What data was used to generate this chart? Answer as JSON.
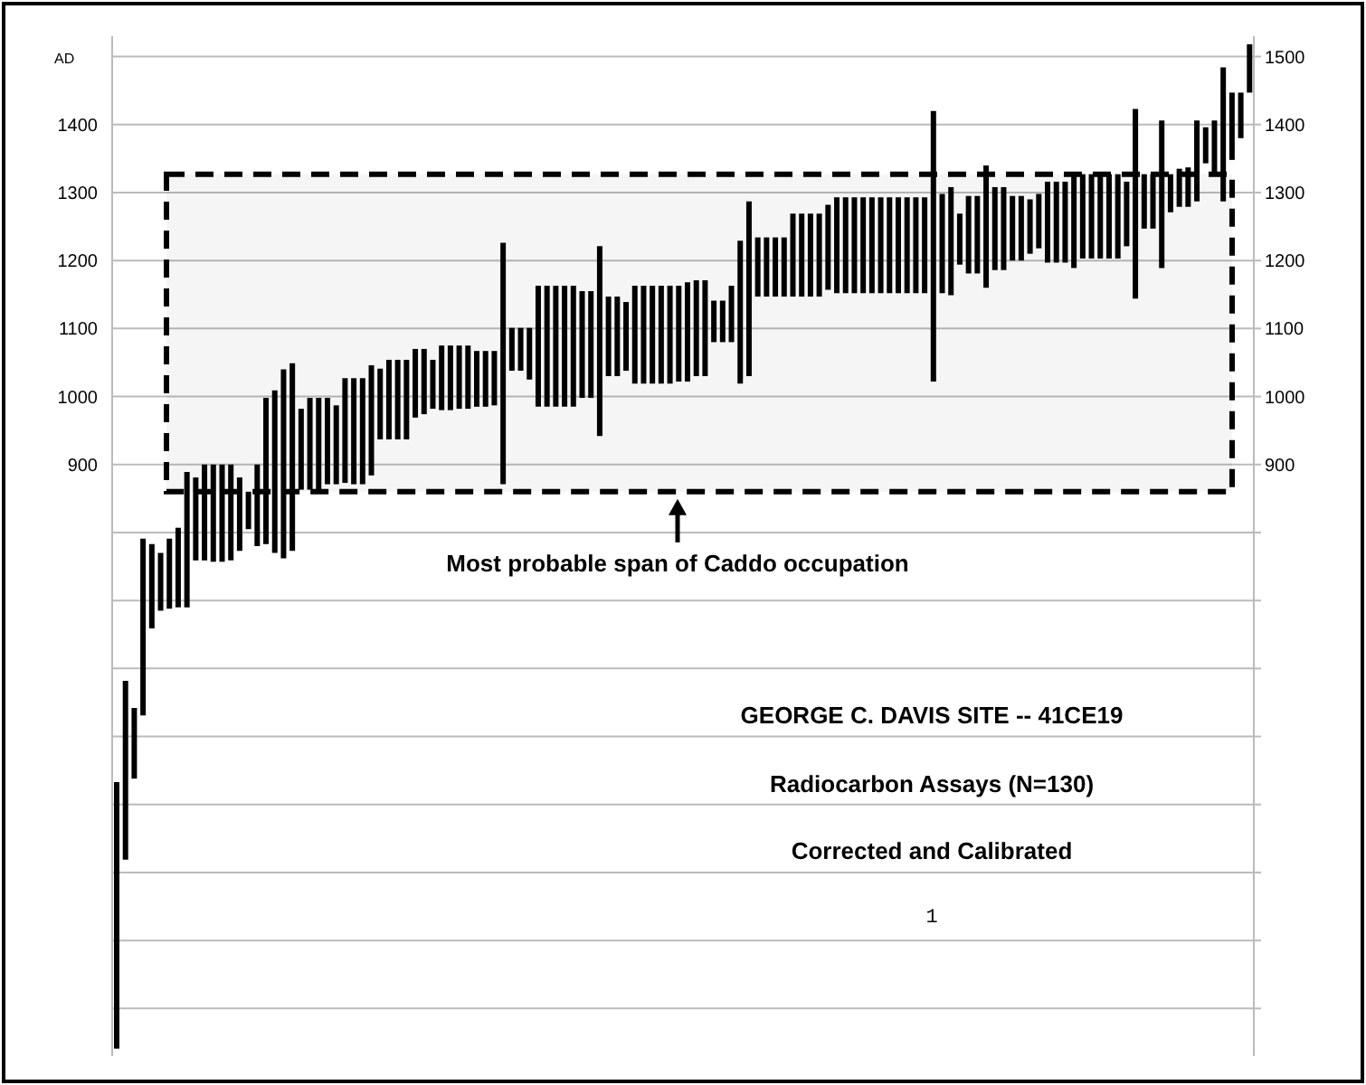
{
  "chart_data": {
    "type": "bar",
    "title": "GEORGE C. DAVIS SITE -- 41CE19",
    "subtitle": "Radiocarbon Assays (N=130)",
    "ylabel": "AD",
    "annotations": [
      "Corrected and Calibrated",
      "1"
    ],
    "categories": [
      null,
      null,
      null,
      null,
      null,
      null,
      null,
      null,
      null,
      null,
      null,
      null,
      null,
      null,
      null,
      null,
      null,
      null,
      null,
      null,
      null,
      null,
      null,
      null,
      null,
      null,
      null,
      null,
      null,
      null,
      null,
      null,
      null,
      null,
      null,
      null,
      null,
      null,
      null,
      null,
      null,
      null,
      null,
      null,
      null,
      null,
      null,
      null,
      null,
      null,
      null,
      null,
      null,
      null,
      null,
      null,
      null,
      null,
      null,
      null,
      null,
      null,
      null,
      null,
      null,
      null,
      null,
      null,
      null,
      null,
      null,
      null,
      null,
      null,
      null,
      null,
      null,
      null,
      null,
      null,
      null,
      null,
      null,
      null,
      null,
      null,
      null,
      null,
      null,
      null,
      null,
      null,
      null,
      null,
      null,
      null,
      null,
      null,
      null,
      null,
      null,
      null,
      null,
      null,
      null,
      null,
      null,
      null,
      null,
      null,
      null,
      null,
      null,
      null,
      null,
      null,
      null,
      null,
      null,
      null,
      null,
      null,
      null,
      null,
      null,
      null,
      null,
      null,
      null,
      null
    ],
    "base": [
      41,
      319,
      438,
      531,
      659,
      685,
      688,
      690,
      690,
      759,
      759,
      757,
      757,
      759,
      773,
      805,
      780,
      783,
      770,
      762,
      773,
      863,
      863,
      863,
      871,
      871,
      873,
      871,
      871,
      884,
      937,
      937,
      937,
      937,
      969,
      974,
      982,
      980,
      980,
      982,
      982,
      985,
      985,
      987,
      871,
      1038,
      1038,
      1025,
      985,
      985,
      985,
      985,
      985,
      998,
      998,
      942,
      1030,
      1030,
      1038,
      1019,
      1019,
      1019,
      1019,
      1019,
      1022,
      1022,
      1030,
      1030,
      1080,
      1080,
      1080,
      1019,
      1030,
      1147,
      1147,
      1147,
      1147,
      1147,
      1147,
      1147,
      1147,
      1157,
      1152,
      1152,
      1152,
      1152,
      1152,
      1152,
      1152,
      1152,
      1152,
      1152,
      1152,
      1022,
      1152,
      1149,
      1194,
      1181,
      1181,
      1160,
      1186,
      1186,
      1200,
      1200,
      1210,
      1218,
      1197,
      1197,
      1197,
      1189,
      1203,
      1203,
      1203,
      1203,
      1203,
      1221,
      1144,
      1247,
      1247,
      1189,
      1271,
      1279,
      1279,
      1287,
      1343,
      1330,
      1287,
      1348,
      1380,
      1447
    ],
    "values": [
      392,
      263,
      104,
      260,
      124,
      85,
      103,
      117,
      199,
      122,
      141,
      143,
      143,
      141,
      108,
      55,
      120,
      215,
      239,
      278,
      276,
      119,
      135,
      135,
      127,
      116,
      154,
      156,
      156,
      162,
      104,
      117,
      117,
      117,
      101,
      96,
      72,
      95,
      95,
      93,
      93,
      82,
      82,
      80,
      355,
      63,
      63,
      76,
      178,
      178,
      178,
      178,
      178,
      157,
      157,
      279,
      117,
      117,
      101,
      144,
      144,
      144,
      144,
      144,
      141,
      146,
      141,
      141,
      61,
      61,
      83,
      210,
      257,
      87,
      87,
      87,
      87,
      122,
      122,
      122,
      122,
      125,
      141,
      141,
      141,
      141,
      141,
      141,
      141,
      141,
      141,
      141,
      141,
      398,
      146,
      159,
      75,
      114,
      114,
      180,
      122,
      122,
      95,
      95,
      80,
      80,
      119,
      119,
      119,
      138,
      124,
      124,
      124,
      124,
      124,
      95,
      279,
      80,
      80,
      217,
      56,
      56,
      58,
      119,
      53,
      76,
      197,
      99,
      67,
      71
    ],
    "color": "#000000",
    "ylim": [
      30,
      1530
    ],
    "yticks": [
      {
        "value": 100,
        "label": null
      },
      {
        "value": 200,
        "label": null
      },
      {
        "value": 300,
        "label": null
      },
      {
        "value": 400,
        "label": null
      },
      {
        "value": 500,
        "label": null
      },
      {
        "value": 600,
        "label": null
      },
      {
        "value": 700,
        "label": null
      },
      {
        "value": 800,
        "label": null
      },
      900,
      1000,
      1100,
      1200,
      1300,
      1400,
      {
        "value": 1500,
        "label": null
      }
    ],
    "y2lim": [
      30,
      1530
    ],
    "y2ticks": [
      {
        "value": 100,
        "label": null
      },
      {
        "value": 200,
        "label": null
      },
      {
        "value": 300,
        "label": null
      },
      {
        "value": 400,
        "label": null
      },
      {
        "value": 500,
        "label": null
      },
      {
        "value": 600,
        "label": null
      },
      {
        "value": 700,
        "label": null
      },
      {
        "value": 800,
        "label": null
      },
      900,
      1000,
      1100,
      1200,
      1300,
      1400,
      1500
    ],
    "bands": [
      {
        "axis": "y",
        "from": 860,
        "to": 1327,
        "label": "Most probable span of Caddo occupation",
        "color": "#000000"
      }
    ],
    "grid": "y"
  }
}
